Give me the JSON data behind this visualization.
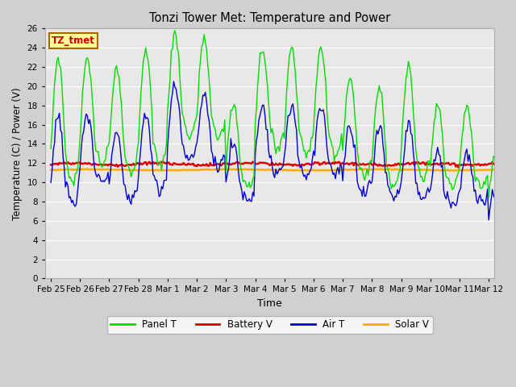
{
  "title": "Tonzi Tower Met: Temperature and Power",
  "xlabel": "Time",
  "ylabel": "Temperature (C) / Power (V)",
  "ylim": [
    0,
    26
  ],
  "yticks": [
    0,
    2,
    4,
    6,
    8,
    10,
    12,
    14,
    16,
    18,
    20,
    22,
    24,
    26
  ],
  "xtick_labels": [
    "Feb 25",
    "Feb 26",
    "Feb 27",
    "Feb 28",
    "Mar 1",
    "Mar 2",
    "Mar 3",
    "Mar 4",
    "Mar 5",
    "Mar 6",
    "Mar 7",
    "Mar 8",
    "Mar 9",
    "Mar 10",
    "Mar 11",
    "Mar 12"
  ],
  "xtick_positions": [
    0,
    1,
    2,
    3,
    4,
    5,
    6,
    7,
    8,
    9,
    10,
    11,
    12,
    13,
    14,
    15
  ],
  "fig_bg_color": "#d0d0d0",
  "plot_bg_color": "#e8e8e8",
  "panel_T_color": "#00dd00",
  "battery_V_color": "#dd0000",
  "air_T_color": "#0000cc",
  "solar_V_color": "#ffaa00",
  "annotation_text": "TZ_tmet",
  "annotation_bg": "#ffff99",
  "annotation_border": "#aa6600",
  "grid_color": "#ffffff",
  "n_days": 16,
  "n_pts_per_day": 24
}
